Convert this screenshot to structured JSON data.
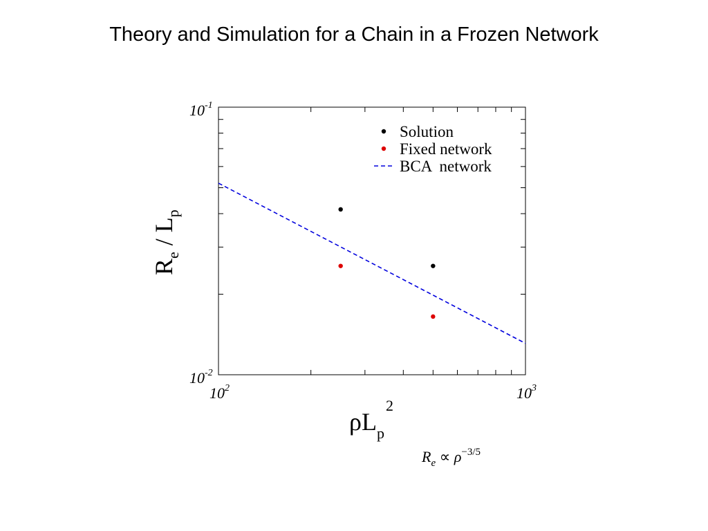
{
  "slide": {
    "title": "Theory and Simulation for a Chain in a Frozen Network",
    "formula": {
      "base": "R",
      "subscript": "e",
      "relation": "∝",
      "variable": "ρ",
      "exponent": "−3/5"
    }
  },
  "chart_data": {
    "type": "scatter",
    "xscale": "log",
    "yscale": "log",
    "xlim": [
      100,
      1000
    ],
    "ylim": [
      0.01,
      0.1
    ],
    "x_ticks": [
      {
        "value": 100,
        "base": "10",
        "exp": "2"
      },
      {
        "value": 1000,
        "base": "10",
        "exp": "3"
      }
    ],
    "y_ticks": [
      {
        "value": 0.01,
        "base": "10",
        "exp": "-2"
      },
      {
        "value": 0.1,
        "base": "10",
        "exp": "-1"
      }
    ],
    "xlabel": {
      "main": "ρL",
      "subscript": "p",
      "superscript": "2"
    },
    "ylabel": {
      "main": "R",
      "subscript": "e",
      "middle": " / L",
      "subscript2": "p"
    },
    "legend_position": "top-right",
    "series": [
      {
        "name": "Solution",
        "kind": "points",
        "color": "#000000",
        "x": [
          250,
          500
        ],
        "y": [
          0.0415,
          0.0255
        ]
      },
      {
        "name": "Fixed network",
        "kind": "points",
        "color": "#dd0000",
        "x": [
          250,
          500
        ],
        "y": [
          0.0255,
          0.0165
        ]
      },
      {
        "name": "BCA  network",
        "kind": "line",
        "style": "dashed",
        "color": "#0000dd",
        "x": [
          100,
          1000
        ],
        "y": [
          0.052,
          0.0131
        ]
      }
    ]
  }
}
